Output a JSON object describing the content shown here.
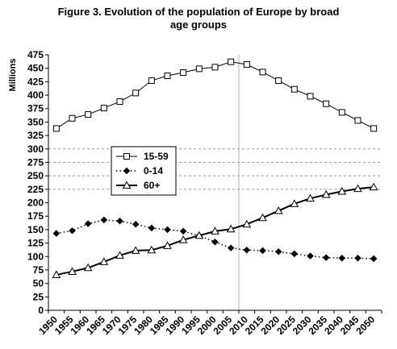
{
  "chart_data": {
    "type": "line",
    "title_line1": "Figure 3.  Evolution of the population of Europe by broad",
    "title_line2": "age groups",
    "ylabel": "Millions",
    "ylim": [
      0,
      475
    ],
    "ytick_step": 25,
    "y_ticks": [
      "0",
      "25",
      "50",
      "75",
      "100",
      "125",
      "150",
      "175",
      "200",
      "225",
      "250",
      "275",
      "300",
      "325",
      "350",
      "375",
      "400",
      "425",
      "450",
      "475"
    ],
    "x_ticks": [
      "1950",
      "1955",
      "1960",
      "1965",
      "1970",
      "1975",
      "1980",
      "1985",
      "1990",
      "1995",
      "2000",
      "2005",
      "2010",
      "2015",
      "2020",
      "2025",
      "2030",
      "2035",
      "2040",
      "2045",
      "2050"
    ],
    "x": [
      1950,
      1955,
      1960,
      1965,
      1970,
      1975,
      1980,
      1985,
      1990,
      1995,
      2000,
      2005,
      2010,
      2015,
      2020,
      2025,
      2030,
      2035,
      2040,
      2045,
      2050
    ],
    "reference_line_x": 2007.5,
    "dashed_gridlines": [
      225,
      250,
      275,
      300
    ],
    "series": [
      {
        "name": "15-59",
        "marker": "square",
        "style": "solid-thin",
        "values": [
          338,
          357,
          364,
          376,
          388,
          404,
          427,
          436,
          442,
          449,
          452,
          462,
          457,
          443,
          427,
          411,
          398,
          384,
          368,
          353,
          338
        ]
      },
      {
        "name": "0-14",
        "marker": "diamond",
        "style": "dotted",
        "values": [
          143,
          148,
          161,
          168,
          166,
          160,
          153,
          150,
          147,
          139,
          127,
          116,
          112,
          111,
          109,
          105,
          101,
          98,
          97,
          97,
          96
        ]
      },
      {
        "name": "60+",
        "marker": "triangle",
        "style": "solid-thick",
        "values": [
          66,
          72,
          79,
          90,
          102,
          111,
          112,
          120,
          131,
          139,
          147,
          151,
          160,
          172,
          185,
          198,
          208,
          215,
          221,
          226,
          229
        ]
      }
    ],
    "legend_position": "middle-left"
  }
}
